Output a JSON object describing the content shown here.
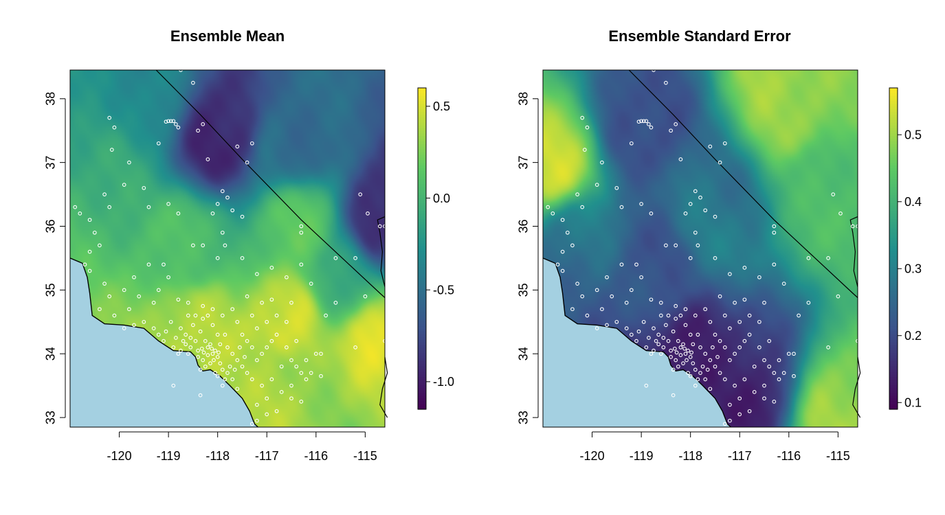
{
  "chart_data": [
    {
      "type": "heatmap",
      "title": "Ensemble Mean",
      "xlabel": "",
      "ylabel": "",
      "xlim": [
        -121.0,
        -114.6
      ],
      "ylim": [
        32.85,
        38.45
      ],
      "x_ticks": [
        -120,
        -119,
        -118,
        -117,
        -116,
        -115
      ],
      "x_tick_labels": [
        "-120",
        "-119",
        "-118",
        "-117",
        "-116",
        "-115"
      ],
      "y_ticks": [
        33,
        34,
        35,
        36,
        37,
        38
      ],
      "y_tick_labels": [
        "33",
        "34",
        "35",
        "36",
        "37",
        "38"
      ],
      "colorbar": {
        "min": -1.15,
        "max": 0.6,
        "ticks": [
          -1.0,
          -0.5,
          0.0,
          0.5
        ],
        "tick_labels": [
          "-1.0",
          "-0.5",
          "0.0",
          "0.5"
        ],
        "colormap": [
          "#440154",
          "#3b528b",
          "#21908d",
          "#5dc963",
          "#fde725"
        ]
      },
      "field_anchors": [
        {
          "lon": -117.9,
          "lat": 37.45,
          "value": -1.05
        },
        {
          "lon": -114.7,
          "lat": 36.05,
          "value": -0.95
        },
        {
          "lon": -116.5,
          "lat": 37.3,
          "value": -0.55
        },
        {
          "lon": -119.5,
          "lat": 38.1,
          "value": -0.3
        },
        {
          "lon": -120.6,
          "lat": 36.8,
          "value": 0.0
        },
        {
          "lon": -118.5,
          "lat": 35.6,
          "value": 0.1
        },
        {
          "lon": -116.6,
          "lat": 34.6,
          "value": 0.55
        },
        {
          "lon": -118.4,
          "lat": 34.5,
          "value": 0.45
        },
        {
          "lon": -114.7,
          "lat": 34.2,
          "value": 0.5
        },
        {
          "lon": -116.3,
          "lat": 36.0,
          "value": 0.15
        },
        {
          "lon": -117.0,
          "lat": 33.5,
          "value": 0.3
        },
        {
          "lon": -115.5,
          "lat": 35.2,
          "value": -0.15
        }
      ]
    },
    {
      "type": "heatmap",
      "title": "Ensemble Standard Error",
      "xlabel": "",
      "ylabel": "",
      "xlim": [
        -121.0,
        -114.6
      ],
      "ylim": [
        32.85,
        38.45
      ],
      "x_ticks": [
        -120,
        -119,
        -118,
        -117,
        -116,
        -115
      ],
      "x_tick_labels": [
        "-120",
        "-119",
        "-118",
        "-117",
        "-116",
        "-115"
      ],
      "y_ticks": [
        33,
        34,
        35,
        36,
        37,
        38
      ],
      "y_tick_labels": [
        "33",
        "34",
        "35",
        "36",
        "37",
        "38"
      ],
      "colorbar": {
        "min": 0.09,
        "max": 0.57,
        "ticks": [
          0.1,
          0.2,
          0.3,
          0.4,
          0.5
        ],
        "tick_labels": [
          "0.1",
          "0.2",
          "0.3",
          "0.4",
          "0.5"
        ],
        "colormap": [
          "#440154",
          "#3b528b",
          "#21908d",
          "#5dc963",
          "#fde725"
        ]
      },
      "field_anchors": [
        {
          "lon": -118.0,
          "lat": 33.9,
          "value": 0.12
        },
        {
          "lon": -116.8,
          "lat": 33.7,
          "value": 0.14
        },
        {
          "lon": -118.8,
          "lat": 35.3,
          "value": 0.22
        },
        {
          "lon": -119.0,
          "lat": 37.6,
          "value": 0.2
        },
        {
          "lon": -116.0,
          "lat": 37.9,
          "value": 0.5
        },
        {
          "lon": -120.8,
          "lat": 37.0,
          "value": 0.5
        },
        {
          "lon": -114.9,
          "lat": 33.1,
          "value": 0.5
        },
        {
          "lon": -117.5,
          "lat": 36.3,
          "value": 0.3
        },
        {
          "lon": -115.3,
          "lat": 36.5,
          "value": 0.42
        },
        {
          "lon": -120.3,
          "lat": 35.8,
          "value": 0.27
        }
      ]
    }
  ],
  "stations": [
    [
      -120.9,
      36.3
    ],
    [
      -120.8,
      36.2
    ],
    [
      -120.6,
      36.1
    ],
    [
      -120.5,
      35.9
    ],
    [
      -120.4,
      35.7
    ],
    [
      -120.6,
      35.6
    ],
    [
      -120.7,
      35.4
    ],
    [
      -120.6,
      35.3
    ],
    [
      -120.3,
      35.1
    ],
    [
      -120.2,
      34.9
    ],
    [
      -120.4,
      34.7
    ],
    [
      -120.1,
      34.6
    ],
    [
      -120.2,
      37.7
    ],
    [
      -120.1,
      37.55
    ],
    [
      -120.15,
      37.2
    ],
    [
      -119.8,
      37.0
    ],
    [
      -119.9,
      36.65
    ],
    [
      -120.3,
      36.5
    ],
    [
      -120.2,
      36.3
    ],
    [
      -119.5,
      36.6
    ],
    [
      -119.4,
      36.3
    ],
    [
      -119.2,
      37.3
    ],
    [
      -119.0,
      37.65
    ],
    [
      -118.95,
      37.65
    ],
    [
      -118.9,
      37.65
    ],
    [
      -118.85,
      37.6
    ],
    [
      -119.05,
      37.64
    ],
    [
      -118.8,
      37.55
    ],
    [
      -118.75,
      38.45
    ],
    [
      -118.5,
      38.25
    ],
    [
      -118.3,
      37.6
    ],
    [
      -118.2,
      37.05
    ],
    [
      -118.4,
      37.5
    ],
    [
      -117.6,
      37.25
    ],
    [
      -117.3,
      37.3
    ],
    [
      -117.4,
      37.0
    ],
    [
      -117.9,
      36.55
    ],
    [
      -118.0,
      36.35
    ],
    [
      -117.8,
      36.45
    ],
    [
      -117.7,
      36.25
    ],
    [
      -117.5,
      36.15
    ],
    [
      -118.1,
      36.2
    ],
    [
      -118.8,
      36.2
    ],
    [
      -119.0,
      36.35
    ],
    [
      -117.9,
      35.9
    ],
    [
      -117.85,
      35.7
    ],
    [
      -118.3,
      35.7
    ],
    [
      -118.5,
      35.7
    ],
    [
      -118.0,
      35.5
    ],
    [
      -117.5,
      35.5
    ],
    [
      -117.2,
      35.25
    ],
    [
      -116.9,
      35.35
    ],
    [
      -116.6,
      35.2
    ],
    [
      -116.3,
      35.4
    ],
    [
      -116.1,
      35.1
    ],
    [
      -116.3,
      36.0
    ],
    [
      -116.3,
      35.9
    ],
    [
      -115.6,
      35.5
    ],
    [
      -115.2,
      35.5
    ],
    [
      -115.1,
      36.5
    ],
    [
      -114.95,
      36.2
    ],
    [
      -114.7,
      36.0
    ],
    [
      -114.6,
      36.0
    ],
    [
      -115.0,
      34.9
    ],
    [
      -115.6,
      34.8
    ],
    [
      -115.8,
      34.6
    ],
    [
      -115.2,
      34.1
    ],
    [
      -114.6,
      34.2
    ],
    [
      -115.9,
      34.0
    ],
    [
      -116.2,
      33.6
    ],
    [
      -116.5,
      33.3
    ],
    [
      -116.3,
      33.25
    ],
    [
      -116.8,
      33.1
    ],
    [
      -117.0,
      33.05
    ],
    [
      -117.2,
      32.95
    ],
    [
      -117.3,
      32.9
    ],
    [
      -119.2,
      35.0
    ],
    [
      -119.0,
      35.2
    ],
    [
      -119.1,
      35.4
    ],
    [
      -119.4,
      35.4
    ],
    [
      -119.7,
      35.2
    ],
    [
      -119.9,
      35.0
    ],
    [
      -119.6,
      34.9
    ],
    [
      -119.3,
      34.8
    ],
    [
      -119.8,
      34.7
    ],
    [
      -119.5,
      34.5
    ],
    [
      -119.7,
      34.45
    ],
    [
      -119.9,
      34.4
    ],
    [
      -119.3,
      34.4
    ],
    [
      -119.2,
      34.3
    ],
    [
      -119.1,
      34.2
    ],
    [
      -118.9,
      34.1
    ],
    [
      -118.8,
      34.0
    ],
    [
      -118.6,
      34.0
    ],
    [
      -118.4,
      34.05
    ],
    [
      -118.3,
      33.9
    ],
    [
      -118.25,
      33.8
    ],
    [
      -118.35,
      33.75
    ],
    [
      -118.2,
      34.1
    ],
    [
      -118.1,
      34.0
    ],
    [
      -118.0,
      33.95
    ],
    [
      -117.95,
      33.85
    ],
    [
      -117.9,
      33.75
    ],
    [
      -118.05,
      34.05
    ],
    [
      -118.15,
      34.15
    ],
    [
      -118.25,
      34.2
    ],
    [
      -118.45,
      34.2
    ],
    [
      -118.55,
      34.25
    ],
    [
      -118.65,
      34.3
    ],
    [
      -118.35,
      34.35
    ],
    [
      -118.5,
      34.45
    ],
    [
      -118.3,
      34.55
    ],
    [
      -118.2,
      34.6
    ],
    [
      -118.1,
      34.7
    ],
    [
      -118.3,
      34.75
    ],
    [
      -118.45,
      34.6
    ],
    [
      -118.6,
      34.8
    ],
    [
      -118.8,
      34.85
    ],
    [
      -118.0,
      34.3
    ],
    [
      -117.8,
      34.1
    ],
    [
      -117.7,
      34.0
    ],
    [
      -117.6,
      33.9
    ],
    [
      -117.5,
      33.8
    ],
    [
      -117.4,
      33.7
    ],
    [
      -117.3,
      33.6
    ],
    [
      -117.7,
      33.6
    ],
    [
      -117.8,
      33.7
    ],
    [
      -117.9,
      33.5
    ],
    [
      -117.6,
      33.45
    ],
    [
      -117.2,
      33.9
    ],
    [
      -117.1,
      34.0
    ],
    [
      -117.0,
      34.1
    ],
    [
      -116.9,
      34.2
    ],
    [
      -117.3,
      34.1
    ],
    [
      -117.4,
      34.2
    ],
    [
      -117.5,
      34.3
    ],
    [
      -117.2,
      34.4
    ],
    [
      -117.0,
      34.5
    ],
    [
      -116.8,
      34.3
    ],
    [
      -116.6,
      34.1
    ],
    [
      -116.5,
      33.9
    ],
    [
      -116.4,
      33.8
    ],
    [
      -116.3,
      33.7
    ],
    [
      -116.2,
      33.9
    ],
    [
      -116.0,
      34.0
    ],
    [
      -116.7,
      33.8
    ],
    [
      -116.9,
      33.6
    ],
    [
      -117.1,
      33.5
    ],
    [
      -117.0,
      33.3
    ],
    [
      -117.2,
      33.2
    ],
    [
      -116.7,
      33.4
    ],
    [
      -116.5,
      33.5
    ],
    [
      -116.1,
      33.7
    ],
    [
      -115.9,
      33.65
    ],
    [
      -116.4,
      34.2
    ],
    [
      -116.6,
      34.5
    ],
    [
      -116.8,
      34.6
    ],
    [
      -117.1,
      34.8
    ],
    [
      -117.4,
      34.9
    ],
    [
      -117.7,
      34.7
    ],
    [
      -117.9,
      34.6
    ],
    [
      -117.6,
      34.5
    ],
    [
      -117.3,
      34.6
    ],
    [
      -116.9,
      34.85
    ],
    [
      -116.5,
      34.8
    ],
    [
      -118.7,
      34.2
    ],
    [
      -118.75,
      34.4
    ],
    [
      -118.95,
      34.5
    ],
    [
      -118.6,
      34.6
    ],
    [
      -118.1,
      34.45
    ],
    [
      -117.85,
      34.3
    ],
    [
      -117.95,
      34.15
    ],
    [
      -118.55,
      34.1
    ],
    [
      -118.4,
      33.95
    ],
    [
      -118.15,
      33.85
    ],
    [
      -118.05,
      33.7
    ],
    [
      -117.85,
      33.6
    ],
    [
      -117.75,
      33.8
    ],
    [
      -118.0,
      33.65
    ],
    [
      -117.65,
      33.75
    ],
    [
      -117.55,
      34.1
    ],
    [
      -117.45,
      33.95
    ],
    [
      -118.9,
      33.5
    ],
    [
      -118.35,
      33.35
    ],
    [
      -118.75,
      34.05
    ],
    [
      -118.65,
      34.15
    ],
    [
      -118.85,
      34.25
    ],
    [
      -119.05,
      34.35
    ],
    [
      -118.2,
      33.98
    ],
    [
      -118.28,
      34.02
    ],
    [
      -118.32,
      34.08
    ],
    [
      -118.12,
      34.08
    ],
    [
      -118.08,
      33.9
    ],
    [
      -117.98,
      34.02
    ]
  ]
}
